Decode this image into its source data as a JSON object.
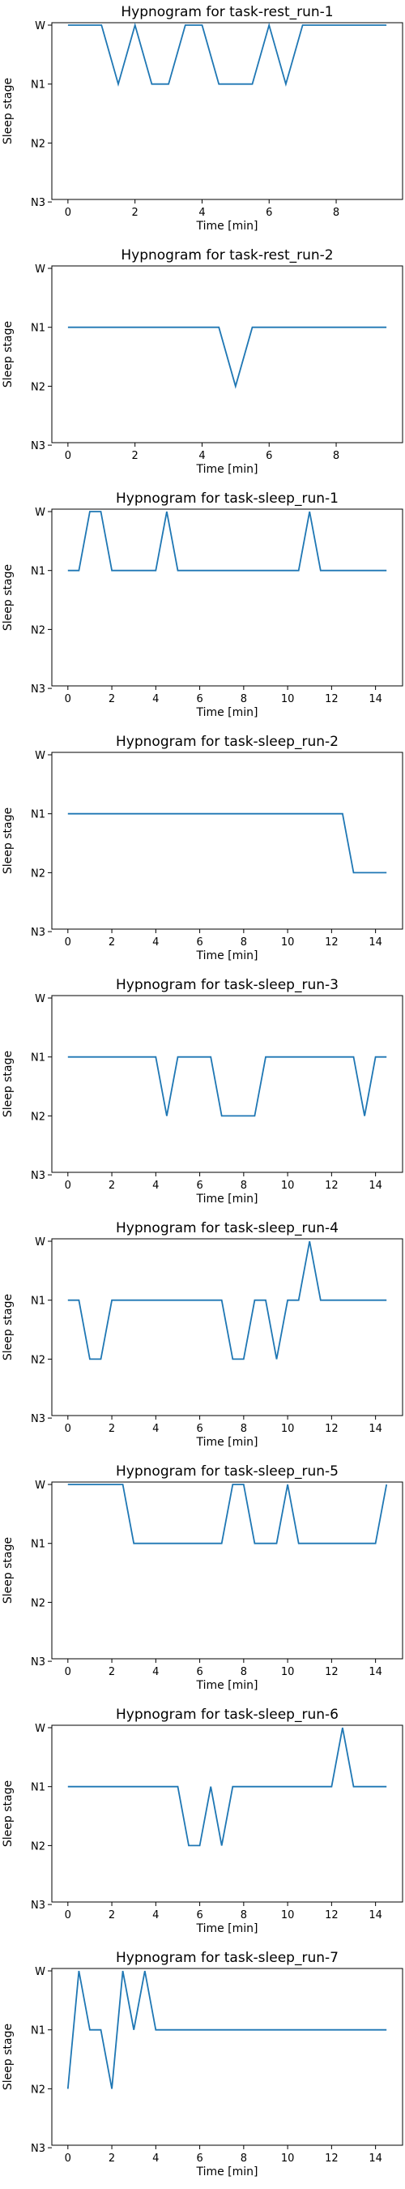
{
  "chart_data": [
    {
      "type": "line",
      "title": "Hypnogram for task-rest_run-1",
      "xlabel": "Time [min]",
      "ylabel": "Sleep stage",
      "xlim": [
        -0.48,
        9.98
      ],
      "xticks": [
        0,
        2,
        4,
        6,
        8
      ],
      "xtick_labels": [
        "0",
        "2",
        "4",
        "6",
        "8"
      ],
      "stages": [
        "W",
        "N1",
        "N2",
        "N3"
      ],
      "x": [
        0,
        0.5,
        1,
        1.5,
        2,
        2.5,
        3,
        3.5,
        4,
        4.5,
        5,
        5.5,
        6,
        6.5,
        7,
        7.5,
        8,
        8.5,
        9,
        9.5
      ],
      "y": [
        "W",
        "W",
        "W",
        "N1",
        "W",
        "N1",
        "N1",
        "W",
        "W",
        "N1",
        "N1",
        "N1",
        "W",
        "N1",
        "W",
        "W",
        "W",
        "W",
        "W",
        "W"
      ],
      "grid": false,
      "line_color": "#1f77b4"
    },
    {
      "type": "line",
      "title": "Hypnogram for task-rest_run-2",
      "xlabel": "Time [min]",
      "ylabel": "Sleep stage",
      "xlim": [
        -0.48,
        9.98
      ],
      "xticks": [
        0,
        2,
        4,
        6,
        8
      ],
      "xtick_labels": [
        "0",
        "2",
        "4",
        "6",
        "8"
      ],
      "stages": [
        "W",
        "N1",
        "N2",
        "N3"
      ],
      "x": [
        0,
        0.5,
        1,
        1.5,
        2,
        2.5,
        3,
        3.5,
        4,
        4.5,
        5,
        5.5,
        6,
        6.5,
        7,
        7.5,
        8,
        8.5,
        9,
        9.5
      ],
      "y": [
        "N1",
        "N1",
        "N1",
        "N1",
        "N1",
        "N1",
        "N1",
        "N1",
        "N1",
        "N1",
        "N2",
        "N1",
        "N1",
        "N1",
        "N1",
        "N1",
        "N1",
        "N1",
        "N1",
        "N1"
      ],
      "grid": false,
      "line_color": "#1f77b4"
    },
    {
      "type": "line",
      "title": "Hypnogram for task-sleep_run-1",
      "xlabel": "Time [min]",
      "ylabel": "Sleep stage",
      "xlim": [
        -0.73,
        15.23
      ],
      "xticks": [
        0,
        2,
        4,
        6,
        8,
        10,
        12,
        14
      ],
      "xtick_labels": [
        "0",
        "2",
        "4",
        "6",
        "8",
        "10",
        "12",
        "14"
      ],
      "stages": [
        "W",
        "N1",
        "N2",
        "N3"
      ],
      "x": [
        0,
        0.5,
        1,
        1.5,
        2,
        2.5,
        3,
        3.5,
        4,
        4.5,
        5,
        5.5,
        6,
        6.5,
        7,
        7.5,
        8,
        8.5,
        9,
        9.5,
        10,
        10.5,
        11,
        11.5,
        12,
        12.5,
        13,
        13.5,
        14,
        14.5
      ],
      "y": [
        "N1",
        "N1",
        "W",
        "W",
        "N1",
        "N1",
        "N1",
        "N1",
        "N1",
        "W",
        "N1",
        "N1",
        "N1",
        "N1",
        "N1",
        "N1",
        "N1",
        "N1",
        "N1",
        "N1",
        "N1",
        "N1",
        "W",
        "N1",
        "N1",
        "N1",
        "N1",
        "N1",
        "N1",
        "N1"
      ],
      "grid": false,
      "line_color": "#1f77b4"
    },
    {
      "type": "line",
      "title": "Hypnogram for task-sleep_run-2",
      "xlabel": "Time [min]",
      "ylabel": "Sleep stage",
      "xlim": [
        -0.73,
        15.23
      ],
      "xticks": [
        0,
        2,
        4,
        6,
        8,
        10,
        12,
        14
      ],
      "xtick_labels": [
        "0",
        "2",
        "4",
        "6",
        "8",
        "10",
        "12",
        "14"
      ],
      "stages": [
        "W",
        "N1",
        "N2",
        "N3"
      ],
      "x": [
        0,
        0.5,
        1,
        1.5,
        2,
        2.5,
        3,
        3.5,
        4,
        4.5,
        5,
        5.5,
        6,
        6.5,
        7,
        7.5,
        8,
        8.5,
        9,
        9.5,
        10,
        10.5,
        11,
        11.5,
        12,
        12.5,
        13,
        13.5,
        14,
        14.5
      ],
      "y": [
        "N1",
        "N1",
        "N1",
        "N1",
        "N1",
        "N1",
        "N1",
        "N1",
        "N1",
        "N1",
        "N1",
        "N1",
        "N1",
        "N1",
        "N1",
        "N1",
        "N1",
        "N1",
        "N1",
        "N1",
        "N1",
        "N1",
        "N1",
        "N1",
        "N1",
        "N1",
        "N2",
        "N2",
        "N2",
        "N2"
      ],
      "grid": false,
      "line_color": "#1f77b4"
    },
    {
      "type": "line",
      "title": "Hypnogram for task-sleep_run-3",
      "xlabel": "Time [min]",
      "ylabel": "Sleep stage",
      "xlim": [
        -0.73,
        15.23
      ],
      "xticks": [
        0,
        2,
        4,
        6,
        8,
        10,
        12,
        14
      ],
      "xtick_labels": [
        "0",
        "2",
        "4",
        "6",
        "8",
        "10",
        "12",
        "14"
      ],
      "stages": [
        "W",
        "N1",
        "N2",
        "N3"
      ],
      "x": [
        0,
        0.5,
        1,
        1.5,
        2,
        2.5,
        3,
        3.5,
        4,
        4.5,
        5,
        5.5,
        6,
        6.5,
        7,
        7.5,
        8,
        8.5,
        9,
        9.5,
        10,
        10.5,
        11,
        11.5,
        12,
        12.5,
        13,
        13.5,
        14,
        14.5
      ],
      "y": [
        "N1",
        "N1",
        "N1",
        "N1",
        "N1",
        "N1",
        "N1",
        "N1",
        "N1",
        "N2",
        "N1",
        "N1",
        "N1",
        "N1",
        "N2",
        "N2",
        "N2",
        "N2",
        "N1",
        "N1",
        "N1",
        "N1",
        "N1",
        "N1",
        "N1",
        "N1",
        "N1",
        "N2",
        "N1",
        "N1"
      ],
      "grid": false,
      "line_color": "#1f77b4"
    },
    {
      "type": "line",
      "title": "Hypnogram for task-sleep_run-4",
      "xlabel": "Time [min]",
      "ylabel": "Sleep stage",
      "xlim": [
        -0.73,
        15.23
      ],
      "xticks": [
        0,
        2,
        4,
        6,
        8,
        10,
        12,
        14
      ],
      "xtick_labels": [
        "0",
        "2",
        "4",
        "6",
        "8",
        "10",
        "12",
        "14"
      ],
      "stages": [
        "W",
        "N1",
        "N2",
        "N3"
      ],
      "x": [
        0,
        0.5,
        1,
        1.5,
        2,
        2.5,
        3,
        3.5,
        4,
        4.5,
        5,
        5.5,
        6,
        6.5,
        7,
        7.5,
        8,
        8.5,
        9,
        9.5,
        10,
        10.5,
        11,
        11.5,
        12,
        12.5,
        13,
        13.5,
        14,
        14.5
      ],
      "y": [
        "N1",
        "N1",
        "N2",
        "N2",
        "N1",
        "N1",
        "N1",
        "N1",
        "N1",
        "N1",
        "N1",
        "N1",
        "N1",
        "N1",
        "N1",
        "N2",
        "N2",
        "N1",
        "N1",
        "N2",
        "N1",
        "N1",
        "W",
        "N1",
        "N1",
        "N1",
        "N1",
        "N1",
        "N1",
        "N1"
      ],
      "grid": false,
      "line_color": "#1f77b4"
    },
    {
      "type": "line",
      "title": "Hypnogram for task-sleep_run-5",
      "xlabel": "Time [min]",
      "ylabel": "Sleep stage",
      "xlim": [
        -0.73,
        15.23
      ],
      "xticks": [
        0,
        2,
        4,
        6,
        8,
        10,
        12,
        14
      ],
      "xtick_labels": [
        "0",
        "2",
        "4",
        "6",
        "8",
        "10",
        "12",
        "14"
      ],
      "stages": [
        "W",
        "N1",
        "N2",
        "N3"
      ],
      "x": [
        0,
        0.5,
        1,
        1.5,
        2,
        2.5,
        3,
        3.5,
        4,
        4.5,
        5,
        5.5,
        6,
        6.5,
        7,
        7.5,
        8,
        8.5,
        9,
        9.5,
        10,
        10.5,
        11,
        11.5,
        12,
        12.5,
        13,
        13.5,
        14,
        14.5
      ],
      "y": [
        "W",
        "W",
        "W",
        "W",
        "W",
        "W",
        "N1",
        "N1",
        "N1",
        "N1",
        "N1",
        "N1",
        "N1",
        "N1",
        "N1",
        "W",
        "W",
        "N1",
        "N1",
        "N1",
        "W",
        "N1",
        "N1",
        "N1",
        "N1",
        "N1",
        "N1",
        "N1",
        "N1",
        "W"
      ],
      "grid": false,
      "line_color": "#1f77b4"
    },
    {
      "type": "line",
      "title": "Hypnogram for task-sleep_run-6",
      "xlabel": "Time [min]",
      "ylabel": "Sleep stage",
      "xlim": [
        -0.73,
        15.23
      ],
      "xticks": [
        0,
        2,
        4,
        6,
        8,
        10,
        12,
        14
      ],
      "xtick_labels": [
        "0",
        "2",
        "4",
        "6",
        "8",
        "10",
        "12",
        "14"
      ],
      "stages": [
        "W",
        "N1",
        "N2",
        "N3"
      ],
      "x": [
        0,
        0.5,
        1,
        1.5,
        2,
        2.5,
        3,
        3.5,
        4,
        4.5,
        5,
        5.5,
        6,
        6.5,
        7,
        7.5,
        8,
        8.5,
        9,
        9.5,
        10,
        10.5,
        11,
        11.5,
        12,
        12.5,
        13,
        13.5,
        14,
        14.5
      ],
      "y": [
        "N1",
        "N1",
        "N1",
        "N1",
        "N1",
        "N1",
        "N1",
        "N1",
        "N1",
        "N1",
        "N1",
        "N2",
        "N2",
        "N1",
        "N2",
        "N1",
        "N1",
        "N1",
        "N1",
        "N1",
        "N1",
        "N1",
        "N1",
        "N1",
        "N1",
        "W",
        "N1",
        "N1",
        "N1",
        "N1"
      ],
      "grid": false,
      "line_color": "#1f77b4"
    },
    {
      "type": "line",
      "title": "Hypnogram for task-sleep_run-7",
      "xlabel": "Time [min]",
      "ylabel": "Sleep stage",
      "xlim": [
        -0.73,
        15.23
      ],
      "xticks": [
        0,
        2,
        4,
        6,
        8,
        10,
        12,
        14
      ],
      "xtick_labels": [
        "0",
        "2",
        "4",
        "6",
        "8",
        "10",
        "12",
        "14"
      ],
      "stages": [
        "W",
        "N1",
        "N2",
        "N3"
      ],
      "x": [
        0,
        0.5,
        1,
        1.5,
        2,
        2.5,
        3,
        3.5,
        4,
        4.5,
        5,
        5.5,
        6,
        6.5,
        7,
        7.5,
        8,
        8.5,
        9,
        9.5,
        10,
        10.5,
        11,
        11.5,
        12,
        12.5,
        13,
        13.5,
        14,
        14.5
      ],
      "y": [
        "N2",
        "W",
        "N1",
        "N1",
        "N2",
        "W",
        "N1",
        "W",
        "N1",
        "N1",
        "N1",
        "N1",
        "N1",
        "N1",
        "N1",
        "N1",
        "N1",
        "N1",
        "N1",
        "N1",
        "N1",
        "N1",
        "N1",
        "N1",
        "N1",
        "N1",
        "N1",
        "N1",
        "N1",
        "N1"
      ],
      "grid": false,
      "line_color": "#1f77b4"
    }
  ]
}
